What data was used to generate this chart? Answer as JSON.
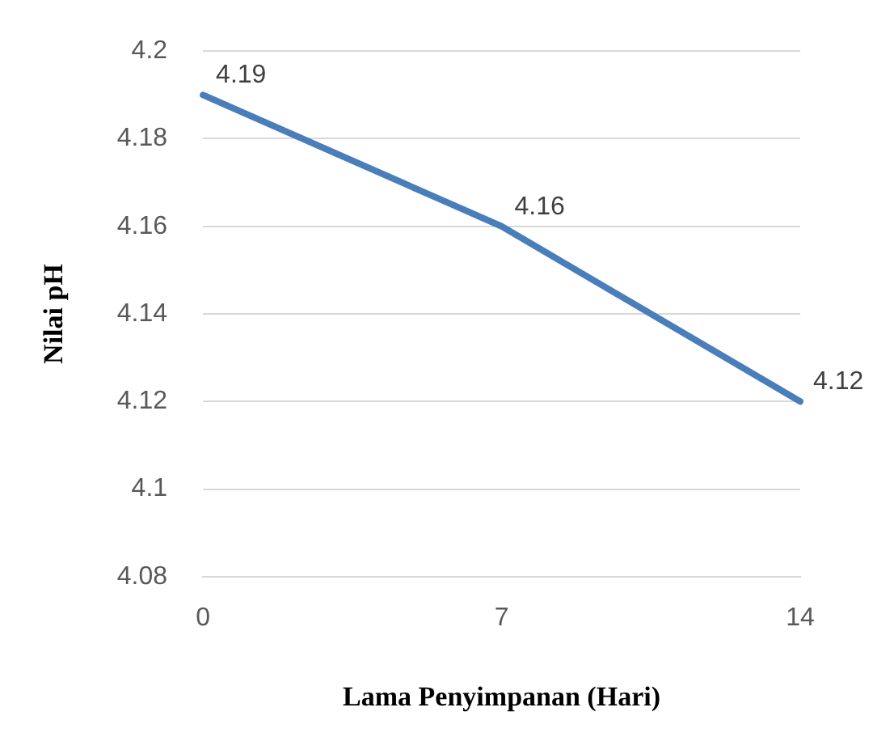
{
  "chart_data": {
    "type": "line",
    "xlabel": "Lama Penyimpanan (Hari)",
    "ylabel": "Nilai pH",
    "categories": [
      "0",
      "7",
      "14"
    ],
    "series": [
      {
        "color": "#4a7ebb",
        "values": [
          4.19,
          4.16,
          4.12
        ]
      }
    ],
    "ylim": [
      4.08,
      4.2
    ],
    "yticks": [
      4.08,
      4.1,
      4.12,
      4.14,
      4.16,
      4.18,
      4.2
    ],
    "grid": "y",
    "legend": false,
    "marker": "none",
    "data_labels": true
  }
}
